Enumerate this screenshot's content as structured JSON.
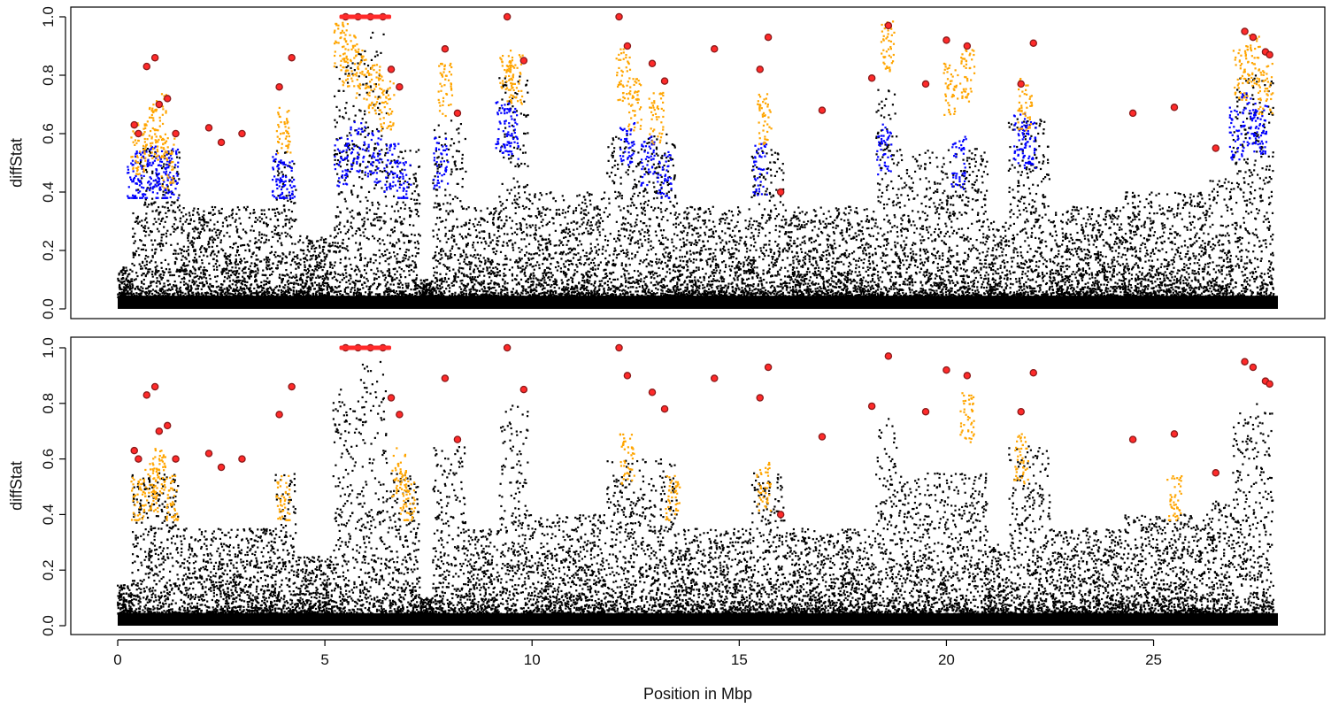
{
  "chart_data": [
    {
      "type": "scatter",
      "title": "",
      "ylabel": "diffStat",
      "xlabel": "",
      "xlim": [
        0,
        28
      ],
      "ylim": [
        0,
        1
      ],
      "yticks": [
        "0.0",
        "0.2",
        "0.4",
        "0.6",
        "0.8",
        "1.0"
      ],
      "grid": false,
      "colors": {
        "background": "#000000",
        "mid": "#0000ff",
        "high": "#ffa500",
        "outlier_fill": "#ff0000",
        "outlier_ring": "#8b1a1a"
      },
      "series": [
        {
          "color": "blue",
          "x": [
            0.4,
            0.6,
            0.9,
            1.1,
            1.3,
            3.9,
            4.1,
            5.4,
            5.8,
            6.2,
            6.6,
            6.9,
            7.8,
            9.3,
            9.5,
            12.3,
            12.8,
            13.2,
            15.5,
            18.5,
            20.3,
            21.8,
            22.0,
            27.0,
            27.3,
            27.6
          ],
          "y": [
            0.42,
            0.45,
            0.47,
            0.43,
            0.46,
            0.44,
            0.42,
            0.5,
            0.55,
            0.52,
            0.48,
            0.42,
            0.5,
            0.62,
            0.6,
            0.55,
            0.5,
            0.45,
            0.48,
            0.55,
            0.5,
            0.58,
            0.55,
            0.6,
            0.65,
            0.62
          ]
        },
        {
          "color": "orange",
          "x": [
            0.5,
            0.8,
            1.0,
            1.2,
            4.0,
            5.4,
            5.6,
            5.9,
            6.2,
            6.5,
            7.9,
            9.4,
            9.6,
            12.2,
            12.5,
            13.0,
            15.6,
            18.6,
            20.1,
            20.5,
            21.9,
            27.1,
            27.4,
            27.7
          ],
          "y": [
            0.55,
            0.6,
            0.65,
            0.5,
            0.6,
            0.9,
            0.85,
            0.8,
            0.75,
            0.7,
            0.75,
            0.8,
            0.78,
            0.8,
            0.7,
            0.65,
            0.65,
            0.9,
            0.75,
            0.8,
            0.7,
            0.8,
            0.85,
            0.75
          ]
        },
        {
          "color": "red",
          "x": [
            0.4,
            0.5,
            0.7,
            0.9,
            1.0,
            1.2,
            1.4,
            2.2,
            2.5,
            3.0,
            3.9,
            4.2,
            5.5,
            5.8,
            6.1,
            6.4,
            6.6,
            6.8,
            7.9,
            8.2,
            9.4,
            9.8,
            12.1,
            12.3,
            12.9,
            13.2,
            14.4,
            15.5,
            15.7,
            16.0,
            17.0,
            18.2,
            18.6,
            19.5,
            20.0,
            20.5,
            21.8,
            22.1,
            24.5,
            25.5,
            26.5,
            27.2,
            27.4,
            27.7,
            27.8
          ],
          "y": [
            0.63,
            0.6,
            0.83,
            0.86,
            0.7,
            0.72,
            0.6,
            0.62,
            0.57,
            0.6,
            0.76,
            0.86,
            1.0,
            1.0,
            1.0,
            1.0,
            0.82,
            0.76,
            0.89,
            0.67,
            1.0,
            0.85,
            1.0,
            0.9,
            0.84,
            0.78,
            0.89,
            0.82,
            0.93,
            0.4,
            0.68,
            0.79,
            0.97,
            0.77,
            0.92,
            0.9,
            0.77,
            0.91,
            0.67,
            0.69,
            0.55,
            0.95,
            0.93,
            0.88,
            0.87
          ]
        }
      ]
    },
    {
      "type": "scatter",
      "title": "",
      "ylabel": "diffStat",
      "xlabel": "Position in Mbp",
      "xlim": [
        0,
        28
      ],
      "ylim": [
        0,
        1
      ],
      "xticks": [
        "0",
        "5",
        "10",
        "15",
        "20",
        "25"
      ],
      "yticks": [
        "0.0",
        "0.2",
        "0.4",
        "0.6",
        "0.8",
        "1.0"
      ],
      "grid": false,
      "colors": {
        "background": "#000000",
        "high": "#ffa500",
        "outlier_fill": "#ff0000",
        "outlier_ring": "#8b1a1a"
      },
      "series": [
        {
          "color": "orange",
          "x": [
            0.5,
            0.8,
            1.0,
            1.3,
            4.0,
            6.8,
            7.0,
            12.3,
            13.4,
            15.6,
            20.5,
            21.8,
            25.5
          ],
          "y": [
            0.45,
            0.5,
            0.55,
            0.45,
            0.45,
            0.55,
            0.45,
            0.6,
            0.45,
            0.5,
            0.75,
            0.6,
            0.45
          ]
        },
        {
          "color": "red",
          "x": [
            0.4,
            0.5,
            0.7,
            0.9,
            1.0,
            1.2,
            1.4,
            2.2,
            2.5,
            3.0,
            3.9,
            4.2,
            5.5,
            5.8,
            6.1,
            6.4,
            6.6,
            6.8,
            7.9,
            8.2,
            9.4,
            9.8,
            12.1,
            12.3,
            12.9,
            13.2,
            14.4,
            15.5,
            15.7,
            16.0,
            17.0,
            18.2,
            18.6,
            19.5,
            20.0,
            20.5,
            21.8,
            22.1,
            24.5,
            25.5,
            26.5,
            27.2,
            27.4,
            27.7,
            27.8
          ],
          "y": [
            0.63,
            0.6,
            0.83,
            0.86,
            0.7,
            0.72,
            0.6,
            0.62,
            0.57,
            0.6,
            0.76,
            0.86,
            1.0,
            1.0,
            1.0,
            1.0,
            0.82,
            0.76,
            0.89,
            0.67,
            1.0,
            0.85,
            1.0,
            0.9,
            0.84,
            0.78,
            0.89,
            0.82,
            0.93,
            0.4,
            0.68,
            0.79,
            0.97,
            0.77,
            0.92,
            0.9,
            0.77,
            0.91,
            0.67,
            0.69,
            0.55,
            0.95,
            0.93,
            0.88,
            0.87
          ]
        }
      ]
    }
  ],
  "background_regions": [
    {
      "start": 0.0,
      "end": 0.35,
      "peak": 0.15
    },
    {
      "start": 0.35,
      "end": 1.5,
      "peak": 0.55
    },
    {
      "start": 1.5,
      "end": 3.8,
      "peak": 0.35
    },
    {
      "start": 3.8,
      "end": 4.3,
      "peak": 0.55
    },
    {
      "start": 4.3,
      "end": 5.2,
      "peak": 0.25
    },
    {
      "start": 5.2,
      "end": 5.8,
      "peak": 0.85
    },
    {
      "start": 5.8,
      "end": 6.5,
      "peak": 0.95
    },
    {
      "start": 6.5,
      "end": 7.3,
      "peak": 0.55
    },
    {
      "start": 7.3,
      "end": 7.6,
      "peak": 0.1
    },
    {
      "start": 7.6,
      "end": 8.4,
      "peak": 0.65
    },
    {
      "start": 8.4,
      "end": 9.2,
      "peak": 0.35
    },
    {
      "start": 9.2,
      "end": 9.9,
      "peak": 0.8
    },
    {
      "start": 9.9,
      "end": 11.8,
      "peak": 0.4
    },
    {
      "start": 11.8,
      "end": 13.5,
      "peak": 0.6
    },
    {
      "start": 13.5,
      "end": 15.3,
      "peak": 0.35
    },
    {
      "start": 15.3,
      "end": 16.1,
      "peak": 0.55
    },
    {
      "start": 16.1,
      "end": 18.3,
      "peak": 0.35
    },
    {
      "start": 18.3,
      "end": 18.8,
      "peak": 0.75
    },
    {
      "start": 18.8,
      "end": 21.0,
      "peak": 0.55
    },
    {
      "start": 21.0,
      "end": 21.5,
      "peak": 0.3
    },
    {
      "start": 21.5,
      "end": 22.5,
      "peak": 0.65
    },
    {
      "start": 22.5,
      "end": 24.3,
      "peak": 0.35
    },
    {
      "start": 24.3,
      "end": 26.3,
      "peak": 0.4
    },
    {
      "start": 26.3,
      "end": 26.9,
      "peak": 0.45
    },
    {
      "start": 26.9,
      "end": 27.9,
      "peak": 0.8
    }
  ]
}
